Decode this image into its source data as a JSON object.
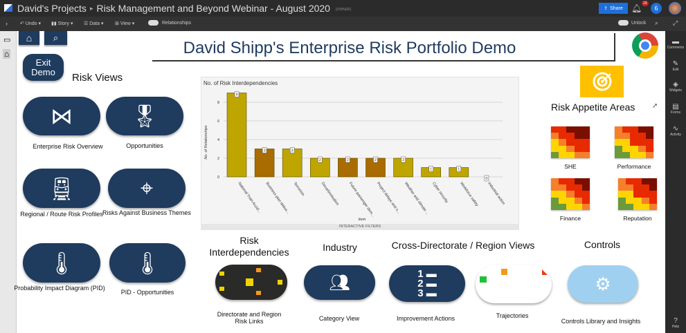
{
  "header": {
    "project": "David's Projects",
    "separator": "▸",
    "title": "Risk Management and Beyond Webinar - August 2020",
    "role": "[OWNER]",
    "share": "Share",
    "notifications": "19",
    "users": "6"
  },
  "toolbar": {
    "undo": "Undo",
    "story": "Story",
    "data": "Data",
    "view": "View",
    "relationships": "Relationships",
    "unlock": "Unlock"
  },
  "rightbar": [
    {
      "label": "Comments",
      "icon": "comment-icon"
    },
    {
      "label": "Edit",
      "icon": "pencil-icon"
    },
    {
      "label": "Widgets",
      "icon": "layers-icon"
    },
    {
      "label": "Forms",
      "icon": "clipboard-icon"
    },
    {
      "label": "Activity",
      "icon": "pulse-icon"
    },
    {
      "label": "Help",
      "icon": "question-icon"
    }
  ],
  "page": {
    "title": "David Shipp's Enterprise Risk Portfolio Demo",
    "exit": "Exit Demo",
    "risk_views": "Risk Views",
    "tiles": [
      "Enterprise Risk Overview",
      "Opportunities",
      "Regional / Route Risk Profiles",
      "Risks Against Business Themes",
      "Probability Impact Diagram (PID)",
      "PID - Opportunities"
    ],
    "appetite_title": "Risk Appetite Areas",
    "appetite": [
      {
        "name": "SHE",
        "grid": [
          "R",
          "R",
          "D",
          "D",
          "D",
          "O",
          "R",
          "R",
          "D",
          "D",
          "Y",
          "O",
          "R",
          "R",
          "R",
          "Y",
          "Y",
          "O",
          "R",
          "R",
          "G",
          "Y",
          "Y",
          "O",
          "O"
        ]
      },
      {
        "name": "Performance",
        "grid": [
          "O",
          "R",
          "R",
          "D",
          "D",
          "O",
          "O",
          "R",
          "R",
          "D",
          "Y",
          "Y",
          "R",
          "R",
          "R",
          "G",
          "Y",
          "Y",
          "O",
          "R",
          "G",
          "G",
          "Y",
          "Y",
          "O"
        ]
      },
      {
        "name": "Finance",
        "grid": [
          "O",
          "R",
          "R",
          "D",
          "D",
          "O",
          "O",
          "R",
          "R",
          "D",
          "Y",
          "Y",
          "O",
          "R",
          "R",
          "G",
          "Y",
          "Y",
          "O",
          "R",
          "G",
          "G",
          "Y",
          "Y",
          "O"
        ]
      },
      {
        "name": "Reputation",
        "grid": [
          "O",
          "R",
          "R",
          "D",
          "D",
          "O",
          "O",
          "R",
          "R",
          "D",
          "Y",
          "Y",
          "R",
          "R",
          "R",
          "G",
          "Y",
          "Y",
          "O",
          "R",
          "G",
          "G",
          "Y",
          "Y",
          "O"
        ]
      }
    ],
    "heat_colors": {
      "D": "#7a0f00",
      "R": "#e82a00",
      "O": "#f57f2a",
      "Y": "#ffd400",
      "G": "#6b9a3a"
    },
    "sections": {
      "interdep": "Risk Interdependencies",
      "industry": "Industry",
      "cross": "Cross-Directorate / Region Views",
      "controls": "Controls"
    },
    "bottom": [
      "Directorate and Region Risk Links",
      "Category View",
      "Improvement Actions",
      "Trajectories",
      "Controls Library and Insights"
    ],
    "filters": "INTERACTIVE FILTERS"
  },
  "chart_data": {
    "type": "bar",
    "title": "No. of Risk Interdependencies",
    "xlabel": "Item",
    "ylabel": "No. of Relationships",
    "ylim": [
      0,
      9
    ],
    "yticks": [
      0,
      2,
      4,
      6,
      8
    ],
    "grid": true,
    "categories": [
      "National Train Accid...",
      "Business plan delive...",
      "Terrorism",
      "Decarbonisation",
      "Future passenger dem...",
      "Project delays and s...",
      "Weather and climate ...",
      "Cyber security",
      "Workforce safety",
      "Industrial action"
    ],
    "values": [
      9,
      3,
      3,
      2,
      2,
      2,
      2,
      1,
      1,
      0
    ],
    "colors": [
      "#bfa500",
      "#a86c00",
      "#bfa500",
      "#bfa500",
      "#a86c00",
      "#a86c00",
      "#bfa500",
      "#bfa500",
      "#bfa500",
      "#bfa500"
    ]
  }
}
